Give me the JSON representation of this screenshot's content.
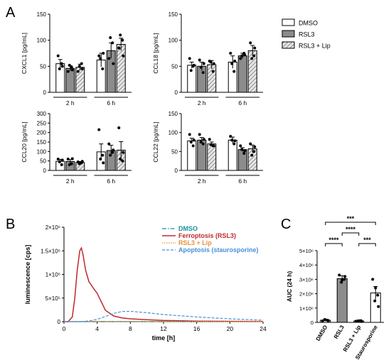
{
  "panel_labels": {
    "a": "A",
    "b": "B",
    "c": "C"
  },
  "legend_a": {
    "items": [
      {
        "label": "DMSO",
        "fill": "#ffffff",
        "hatch": false
      },
      {
        "label": "RSL3",
        "fill": "#8c8c8c",
        "hatch": false
      },
      {
        "label": "RSL3 + Lip",
        "fill": "#d9d9d9",
        "hatch": true
      }
    ]
  },
  "colors": {
    "dmso_bar": "#ffffff",
    "rsl3_bar": "#8c8c8c",
    "lip_bar": "#d9d9d9",
    "dmso_line": "#1a8fa0",
    "ferro_line": "#c0282d",
    "lip_line": "#e69138",
    "apop_line": "#4a90d9"
  },
  "chart_data": [
    {
      "type": "bar",
      "ylabel": "CXCL1 [pg/mL]",
      "ylim": [
        0,
        150
      ],
      "yticks": [
        0,
        50,
        100,
        150
      ],
      "groups": [
        "2 h",
        "6 h"
      ],
      "series": [
        {
          "name": "DMSO",
          "values": [
            55,
            62
          ],
          "errors": [
            8,
            13
          ],
          "points": [
            [
              70,
              55,
              45,
              50
            ],
            [
              70,
              45,
              65,
              75
            ]
          ]
        },
        {
          "name": "RSL3",
          "values": [
            46,
            80
          ],
          "errors": [
            5,
            15
          ],
          "points": [
            [
              40,
              48,
              52,
              43
            ],
            [
              65,
              95,
              105,
              55
            ]
          ]
        },
        {
          "name": "RSL3 + Lip",
          "values": [
            48,
            92
          ],
          "errors": [
            6,
            12
          ],
          "points": [
            [
              40,
              55,
              50,
              45
            ],
            [
              85,
              100,
              110,
              70
            ]
          ]
        }
      ]
    },
    {
      "type": "bar",
      "ylabel": "CCL18 [pg/mL]",
      "ylim": [
        0,
        150
      ],
      "yticks": [
        0,
        50,
        100,
        150
      ],
      "groups": [
        "2 h",
        "6 h"
      ],
      "series": [
        {
          "name": "DMSO",
          "values": [
            52,
            58
          ],
          "errors": [
            6,
            12
          ],
          "points": [
            [
              65,
              50,
              42,
              52
            ],
            [
              75,
              40,
              55,
              60
            ]
          ]
        },
        {
          "name": "RSL3",
          "values": [
            50,
            70
          ],
          "errors": [
            8,
            5
          ],
          "points": [
            [
              62,
              38,
              48,
              55
            ],
            [
              65,
              75,
              70,
              72
            ]
          ]
        },
        {
          "name": "RSL3 + Lip",
          "values": [
            53,
            80
          ],
          "errors": [
            8,
            10
          ],
          "points": [
            [
              60,
              40,
              58,
              55
            ],
            [
              95,
              70,
              65,
              85
            ]
          ]
        }
      ]
    },
    {
      "type": "bar",
      "ylabel": "CCL20 [pg/mL]",
      "ylim": [
        0,
        300
      ],
      "yticks": [
        0,
        50,
        100,
        150,
        200,
        250,
        300
      ],
      "groups": [
        "2 h",
        "6 h"
      ],
      "series": [
        {
          "name": "DMSO",
          "values": [
            48,
            98
          ],
          "errors": [
            10,
            42
          ],
          "points": [
            [
              60,
              30,
              45,
              55
            ],
            [
              215,
              80,
              60,
              40
            ]
          ]
        },
        {
          "name": "RSL3",
          "values": [
            47,
            105
          ],
          "errors": [
            10,
            28
          ],
          "points": [
            [
              60,
              35,
              30,
              62
            ],
            [
              140,
              95,
              80,
              108
            ]
          ]
        },
        {
          "name": "RSL3 + Lip",
          "values": [
            42,
            107
          ],
          "errors": [
            5,
            45
          ],
          "points": [
            [
              45,
              40,
              35,
              48
            ],
            [
              225,
              50,
              60,
              95
            ]
          ]
        }
      ]
    },
    {
      "type": "bar",
      "ylabel": "CCL22 [pg/mL]",
      "ylim": [
        0,
        150
      ],
      "yticks": [
        0,
        50,
        100,
        150
      ],
      "groups": [
        "2 h",
        "6 h"
      ],
      "series": [
        {
          "name": "DMSO",
          "values": [
            78,
            80
          ],
          "errors": [
            7,
            8
          ],
          "points": [
            [
              95,
              65,
              75,
              80
            ],
            [
              90,
              70,
              80,
              78
            ]
          ]
        },
        {
          "name": "RSL3",
          "values": [
            80,
            55
          ],
          "errors": [
            7,
            5
          ],
          "points": [
            [
              95,
              70,
              75,
              82
            ],
            [
              65,
              45,
              55,
              52
            ]
          ]
        },
        {
          "name": "RSL3 + Lip",
          "values": [
            70,
            57
          ],
          "errors": [
            5,
            10
          ],
          "points": [
            [
              82,
              65,
              68,
              65
            ],
            [
              70,
              50,
              40,
              62
            ]
          ]
        }
      ]
    },
    {
      "type": "line",
      "xlabel": "time [h]",
      "ylabel": "luminescence [cps]",
      "xlim": [
        0,
        24
      ],
      "xticks": [
        0,
        4,
        8,
        12,
        16,
        20,
        24
      ],
      "ylim": [
        0,
        2000000
      ],
      "yticks": [
        0,
        500000,
        1000000,
        1500000,
        2000000
      ],
      "ytick_labels": [
        "0",
        "5×10⁵",
        "1×10⁶",
        "1.5×10⁶",
        "2×10⁶"
      ],
      "series": [
        {
          "name": "DMSO",
          "style": "dash-dot",
          "x": [
            0,
            2,
            4,
            6,
            8,
            12,
            16,
            20,
            24
          ],
          "y": [
            0,
            0,
            0,
            0,
            0,
            0,
            0,
            0,
            0
          ]
        },
        {
          "name": "Ferroptosis (RSL3)",
          "style": "solid",
          "x": [
            0,
            0.5,
            1,
            1.3,
            1.6,
            1.9,
            2.1,
            2.3,
            2.6,
            3,
            3.5,
            4,
            4.5,
            5,
            6,
            7,
            8,
            10,
            12,
            16,
            20,
            24
          ],
          "y": [
            0,
            0,
            100000,
            500000,
            1100000,
            1500000,
            1560000,
            1420000,
            1100000,
            850000,
            720000,
            600000,
            420000,
            240000,
            120000,
            80000,
            60000,
            40000,
            25000,
            12000,
            8000,
            5000
          ]
        },
        {
          "name": "RSL3 + Lip",
          "style": "dotted",
          "x": [
            0,
            2,
            4,
            6,
            8,
            12,
            16,
            20,
            24
          ],
          "y": [
            0,
            5000,
            5000,
            5000,
            5000,
            5000,
            5000,
            5000,
            5000
          ]
        },
        {
          "name": "Apoptosis (staurosporine)",
          "style": "dashed",
          "x": [
            0,
            2,
            3,
            4,
            5,
            6,
            7,
            8,
            10,
            12,
            16,
            20,
            24
          ],
          "y": [
            0,
            0,
            15000,
            50000,
            110000,
            175000,
            215000,
            220000,
            190000,
            150000,
            100000,
            60000,
            30000
          ]
        }
      ]
    },
    {
      "type": "bar",
      "ylabel": "AUC (24 h)",
      "ylim": [
        0,
        5000000
      ],
      "yticks": [
        0,
        1000000,
        2000000,
        3000000,
        4000000,
        5000000
      ],
      "ytick_labels": [
        "0",
        "1×10⁶",
        "2×10⁶",
        "3×10⁶",
        "4×10⁶",
        "5×10⁶"
      ],
      "categories": [
        "DMSO",
        "RSL3",
        "RSL3 + Lip",
        "Staurosporine"
      ],
      "values": [
        150000,
        3050000,
        100000,
        2050000
      ],
      "errors": [
        50000,
        200000,
        50000,
        450000
      ],
      "points": [
        [
          100000,
          150000,
          200000,
          120000,
          180000
        ],
        [
          3300000,
          3000000,
          2800000,
          3200000,
          2950000
        ],
        [
          80000,
          120000,
          100000,
          60000,
          110000
        ],
        [
          3000000,
          1900000,
          1500000,
          1100000,
          2400000
        ]
      ],
      "significance": [
        {
          "from": 0,
          "to": 1,
          "label": "****",
          "level": 1
        },
        {
          "from": 2,
          "to": 3,
          "label": "***",
          "level": 1
        },
        {
          "from": 1,
          "to": 2,
          "label": "****",
          "level": 2
        },
        {
          "from": 0,
          "to": 3,
          "label": "***",
          "level": 3
        }
      ]
    }
  ]
}
